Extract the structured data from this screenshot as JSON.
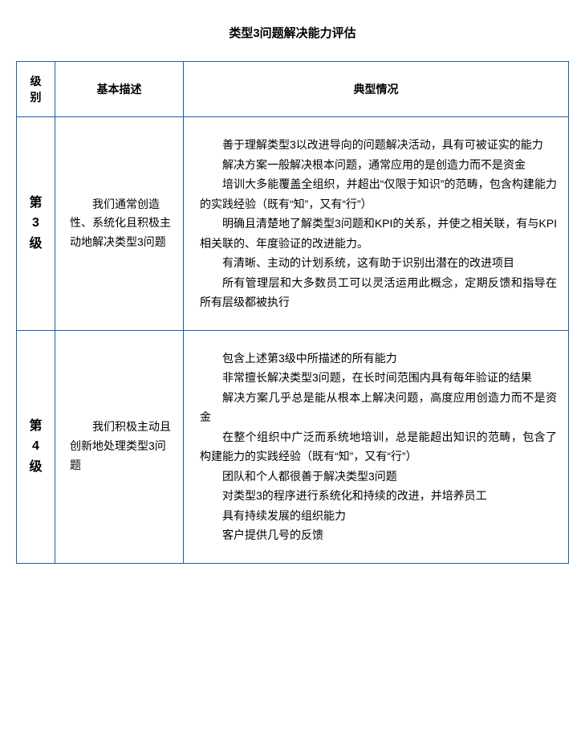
{
  "title": "类型3问题解决能力评估",
  "colors": {
    "border": "#1e5aa8",
    "text": "#000000",
    "background": "#ffffff"
  },
  "typography": {
    "title_fontsize": 15,
    "header_fontsize": 14,
    "body_fontsize": 14,
    "level_fontsize": 16,
    "line_height": 1.75
  },
  "headers": {
    "level": "级别",
    "description": "基本描述",
    "situation": "典型情况"
  },
  "rows": [
    {
      "level_chars": [
        "第",
        "3",
        "级"
      ],
      "description": "我们通常创造性、系统化且积极主动地解决类型3问题",
      "situations": [
        "善于理解类型3以改进导向的问题解决活动，具有可被证实的能力",
        "解决方案一般解决根本问题，通常应用的是创造力而不是资金",
        "培训大多能覆盖全组织，并超出“仅限于知识”的范畴，包含构建能力的实践经验（既有“知”，又有“行”）",
        "明确且清楚地了解类型3问题和KPI的关系，并使之相关联，有与KPI相关联的、年度验证的改进能力。",
        "有清晰、主动的计划系统，这有助于识别出潜在的改进项目",
        "所有管理层和大多数员工可以灵活运用此概念，定期反馈和指导在所有层级都被执行"
      ]
    },
    {
      "level_chars": [
        "第",
        "4",
        "级"
      ],
      "description": "我们积极主动且创新地处理类型3问题",
      "situations": [
        "包含上述第3级中所描述的所有能力",
        "非常擅长解决类型3问题，在长时间范围内具有每年验证的结果",
        "解决方案几乎总是能从根本上解决问题，高度应用创造力而不是资金",
        "在整个组织中广泛而系统地培训，总是能超出知识的范畴，包含了构建能力的实践经验（既有“知”，又有“行”）",
        "团队和个人都很善于解决类型3问题",
        "对类型3的程序进行系统化和持续的改进，并培养员工",
        "具有持续发展的组织能力",
        "客户提供几号的反馈"
      ]
    }
  ]
}
